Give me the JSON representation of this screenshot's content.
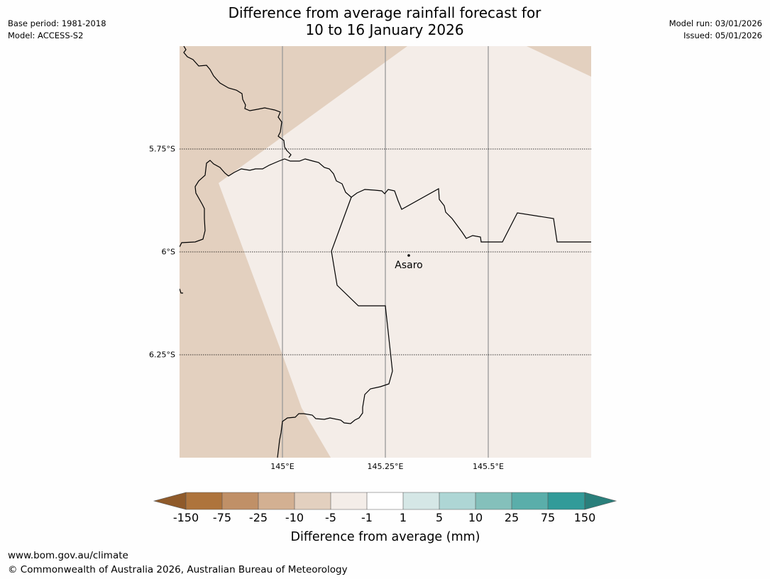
{
  "header": {
    "base_period": "Base period: 1981-2018",
    "model": "Model: ACCESS-S2",
    "title_line1": "Difference from average rainfall forecast for",
    "title_line2": "10 to 16 January 2026",
    "model_run": "Model run: 03/01/2026",
    "issued": "Issued: 05/01/2026"
  },
  "map": {
    "lat_labels": [
      "5.75°S",
      "6°S",
      "6.25°S"
    ],
    "lon_labels": [
      "145°E",
      "145.25°E",
      "145.5°E"
    ],
    "places": [
      {
        "name": "Asaro",
        "lon": 145.3,
        "lat": -6.01
      }
    ],
    "colors": {
      "below_light": "#e3d0bf",
      "near_average": "#f4ede8",
      "land_line": "#000000",
      "meridian": "#999999"
    }
  },
  "colorbar": {
    "title": "Difference from average (mm)",
    "tick_labels": [
      "-150",
      "-75",
      "-25",
      "-10",
      "-5",
      "-1",
      "1",
      "5",
      "10",
      "25",
      "75",
      "150"
    ],
    "low_extend_color": "#8f5a2a",
    "high_extend_color": "#2a7f7b",
    "bin_colors": [
      "#ae743c",
      "#c09067",
      "#d3b092",
      "#e3d0bf",
      "#f4ede8",
      "#ffffff",
      "#d5e7e6",
      "#aed6d5",
      "#84c0bb",
      "#5aaeaa",
      "#329b99"
    ]
  },
  "footer": {
    "url": "www.bom.gov.au/climate",
    "copyright": "© Commonwealth of Australia 2026, Australian Bureau of Meteorology"
  }
}
